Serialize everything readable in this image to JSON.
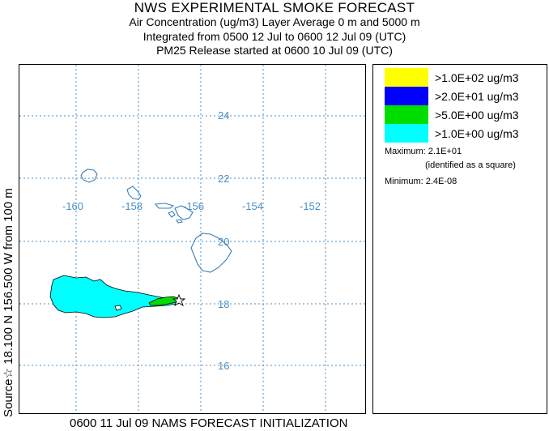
{
  "header": {
    "title": "NWS EXPERIMENTAL SMOKE FORECAST",
    "line1": "Air Concentration (ug/m3) Layer Average    0 m and  5000 m",
    "line2": "Integrated from 0500 12 Jul to 0600 12 Jul 09 (UTC)",
    "line3": "PM25 Release started at 0600 10 Jul 09 (UTC)"
  },
  "side_label": "Source☆ 18.100 N 156.500 W    from  100 m",
  "footer": "0600 11 Jul 09 NAMS FORECAST INITIALIZATION",
  "map": {
    "lon_ticks": [
      "-160",
      "-158",
      "-156",
      "-154",
      "-152"
    ],
    "lat_ticks": [
      "24",
      "22",
      "20",
      "18",
      "16"
    ],
    "gridline_color": "#4a8fc4",
    "coastline_color": "#3a7fb8",
    "source_marker": "star-icon"
  },
  "legend": {
    "items": [
      {
        "label": ">1.0E+02 ug/m3",
        "color": "#ffff00"
      },
      {
        "label": ">2.0E+01 ug/m3",
        "color": "#0000ff"
      },
      {
        "label": ">5.0E+00 ug/m3",
        "color": "#00dd00"
      },
      {
        "label": ">1.0E+00 ug/m3",
        "color": "#00ffff"
      }
    ],
    "maximum": "Maximum: 2.1E+01",
    "maximum_note": "(identified as a square)",
    "minimum": "Minimum: 2.4E-08"
  }
}
